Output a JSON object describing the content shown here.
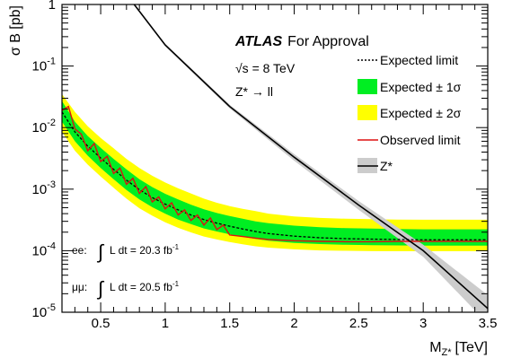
{
  "chart_data": {
    "type": "line",
    "experiment": "ATLAS",
    "status": "For Approval",
    "energy_label": "√s = 8 TeV",
    "process_label": "Z* → ll",
    "xlabel": "M",
    "xlabel_sub": "Z*",
    "xlabel_unit": "[TeV]",
    "ylabel": "σ B [pb]",
    "xlim": [
      0.2,
      3.5
    ],
    "ylim": [
      1e-05,
      1
    ],
    "yscale": "log",
    "x_ticks": [
      0.5,
      1,
      1.5,
      2,
      2.5,
      3,
      3.5
    ],
    "x_tick_labels": [
      "0.5",
      "1",
      "1.5",
      "2",
      "2.5",
      "3",
      "3.5"
    ],
    "y_ticks": [
      1e-05,
      0.0001,
      0.001,
      0.01,
      0.1,
      1
    ],
    "y_tick_base": "10",
    "y_tick_exps": [
      "-5",
      "-4",
      "-3",
      "-2",
      "-1",
      ""
    ],
    "y_tick_plain": [
      "",
      "",
      "",
      "",
      "",
      "1"
    ],
    "legend_position": "right",
    "legend": [
      {
        "label": "Expected limit",
        "style": "dotted-line",
        "color": "#000000"
      },
      {
        "label": "Expected ± 1σ",
        "style": "band",
        "color": "#00ee22"
      },
      {
        "label": "Expected ± 2σ",
        "style": "band",
        "color": "#ffff00"
      },
      {
        "label": "Observed limit",
        "style": "line",
        "color": "#dd1111"
      },
      {
        "label": "Z*",
        "style": "line-band",
        "color": "#000000",
        "band_color": "#cccccc"
      }
    ],
    "lumi": [
      {
        "channel": "ee:",
        "text": "L dt = 20.3 fb",
        "exp": "-1"
      },
      {
        "channel": "μμ:",
        "text": "L dt = 20.5 fb",
        "exp": "-1"
      }
    ],
    "x": [
      0.2,
      0.3,
      0.4,
      0.5,
      0.6,
      0.7,
      0.8,
      0.9,
      1.0,
      1.1,
      1.2,
      1.3,
      1.4,
      1.5,
      1.6,
      1.7,
      1.8,
      2.0,
      2.2,
      2.4,
      2.6,
      2.8,
      3.0,
      3.2,
      3.5
    ],
    "series": [
      {
        "name": "Expected limit",
        "values": [
          0.018,
          0.0085,
          0.005,
          0.0032,
          0.0021,
          0.0014,
          0.00098,
          0.00073,
          0.00057,
          0.00046,
          0.00038,
          0.00032,
          0.00028,
          0.00025,
          0.000225,
          0.000205,
          0.00019,
          0.000172,
          0.000162,
          0.000157,
          0.000154,
          0.000152,
          0.00015,
          0.00015,
          0.00015
        ]
      },
      {
        "name": "Expected ± 1σ lower",
        "values": [
          0.0125,
          0.006,
          0.0035,
          0.0022,
          0.00145,
          0.00097,
          0.00068,
          0.00051,
          0.0004,
          0.00032,
          0.00027,
          0.00023,
          0.000205,
          0.000185,
          0.000168,
          0.000155,
          0.000145,
          0.000134,
          0.000128,
          0.000125,
          0.000123,
          0.000122,
          0.000121,
          0.000121,
          0.000121
        ]
      },
      {
        "name": "Expected ± 1σ upper",
        "values": [
          0.027,
          0.0125,
          0.0073,
          0.0047,
          0.0031,
          0.0021,
          0.00145,
          0.00108,
          0.00084,
          0.00068,
          0.00056,
          0.00047,
          0.00041,
          0.000365,
          0.00033,
          0.0003,
          0.00028,
          0.000255,
          0.00024,
          0.000232,
          0.000228,
          0.000225,
          0.000222,
          0.000222,
          0.000222
        ]
      },
      {
        "name": "Expected ± 2σ lower",
        "values": [
          0.0085,
          0.0042,
          0.0025,
          0.0016,
          0.00105,
          0.0007,
          0.00049,
          0.00037,
          0.00029,
          0.000235,
          0.000198,
          0.00017,
          0.000152,
          0.000138,
          0.000127,
          0.000118,
          0.000112,
          0.000105,
          0.000101,
          9.95e-05,
          9.85e-05,
          9.8e-05,
          9.8e-05,
          9.8e-05,
          9.8e-05
        ]
      },
      {
        "name": "Expected ± 2σ upper",
        "values": [
          0.035,
          0.018,
          0.0105,
          0.0068,
          0.0046,
          0.0031,
          0.0022,
          0.00165,
          0.00128,
          0.00103,
          0.00085,
          0.0007,
          0.0006,
          0.00053,
          0.00048,
          0.00044,
          0.0004,
          0.00036,
          0.00034,
          0.00033,
          0.000325,
          0.00032,
          0.000318,
          0.000318,
          0.000318
        ]
      },
      {
        "name": "Observed limit",
        "x": [
          0.2,
          0.25,
          0.3,
          0.35,
          0.4,
          0.45,
          0.5,
          0.55,
          0.6,
          0.65,
          0.7,
          0.75,
          0.8,
          0.85,
          0.9,
          0.95,
          1.0,
          1.05,
          1.1,
          1.15,
          1.2,
          1.25,
          1.3,
          1.35,
          1.4,
          1.45,
          1.5,
          1.6,
          1.7,
          1.8,
          2.0,
          2.2,
          2.4,
          2.6,
          2.8,
          3.0,
          3.2,
          3.5
        ],
        "values": [
          0.019,
          0.022,
          0.0095,
          0.0078,
          0.0042,
          0.0055,
          0.0028,
          0.0034,
          0.0018,
          0.0022,
          0.0012,
          0.0015,
          0.00085,
          0.0011,
          0.00062,
          0.00075,
          0.00048,
          0.0006,
          0.00038,
          0.00046,
          0.00031,
          0.00038,
          0.00026,
          0.00034,
          0.00022,
          0.00026,
          0.00018,
          0.00017,
          0.00016,
          0.000152,
          0.000145,
          0.000142,
          0.00014,
          0.00014,
          0.000142,
          0.000142,
          0.000142,
          0.000142
        ]
      },
      {
        "name": "Z*",
        "x": [
          0.76,
          1.0,
          1.5,
          2.0,
          2.5,
          3.0,
          3.5
        ],
        "values": [
          1.0,
          0.22,
          0.022,
          0.0033,
          0.00055,
          0.0001,
          1.15e-05
        ]
      },
      {
        "name": "Z* band lower",
        "x": [
          0.76,
          1.0,
          1.5,
          2.0,
          2.5,
          3.0,
          3.5
        ],
        "values": [
          0.97,
          0.21,
          0.0205,
          0.0029,
          0.00046,
          7.95e-05,
          6.5e-06
        ]
      },
      {
        "name": "Z* band upper",
        "x": [
          0.76,
          1.0,
          1.5,
          2.0,
          2.5,
          3.0,
          3.5
        ],
        "values": [
          1.03,
          0.23,
          0.0235,
          0.0037,
          0.00064,
          0.000125,
          1.9e-05
        ]
      }
    ]
  }
}
